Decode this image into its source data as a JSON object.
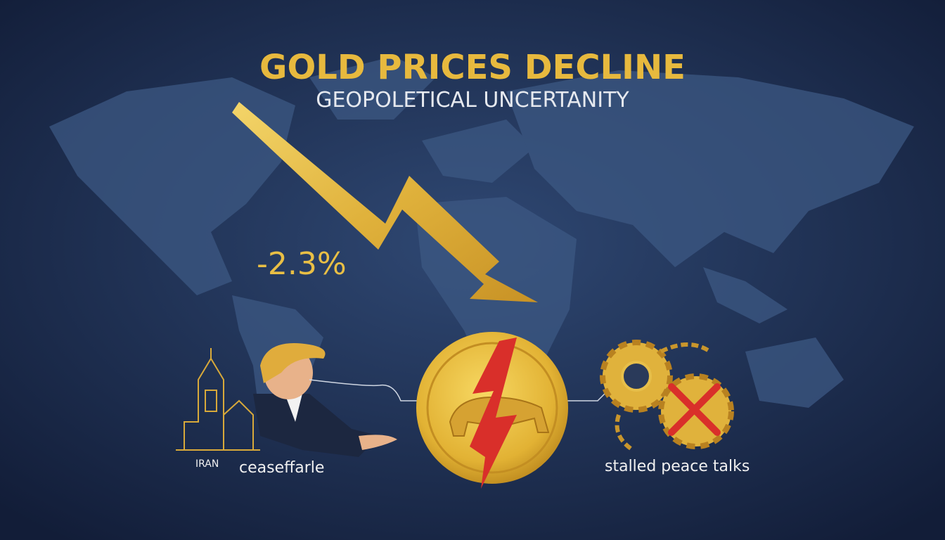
{
  "header": {
    "title": "GOLD PRICES DECLINE",
    "subtitle": "GEOPOLETICAL UNCERTANITY"
  },
  "change": "-2.3%",
  "left": {
    "country": "IRAN",
    "caption": "ceaseffarle"
  },
  "right": {
    "caption": "stalled peace talks"
  }
}
